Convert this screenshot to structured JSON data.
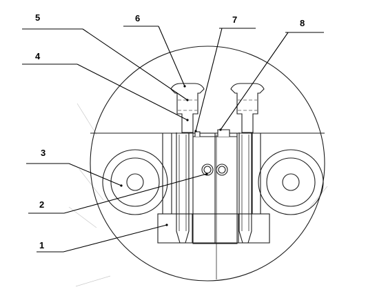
{
  "callouts": [
    {
      "id": "1",
      "label": "1"
    },
    {
      "id": "2",
      "label": "2"
    },
    {
      "id": "3",
      "label": "3"
    },
    {
      "id": "4",
      "label": "4"
    },
    {
      "id": "5",
      "label": "5"
    },
    {
      "id": "6",
      "label": "6"
    },
    {
      "id": "7",
      "label": "7"
    },
    {
      "id": "8",
      "label": "8"
    }
  ]
}
